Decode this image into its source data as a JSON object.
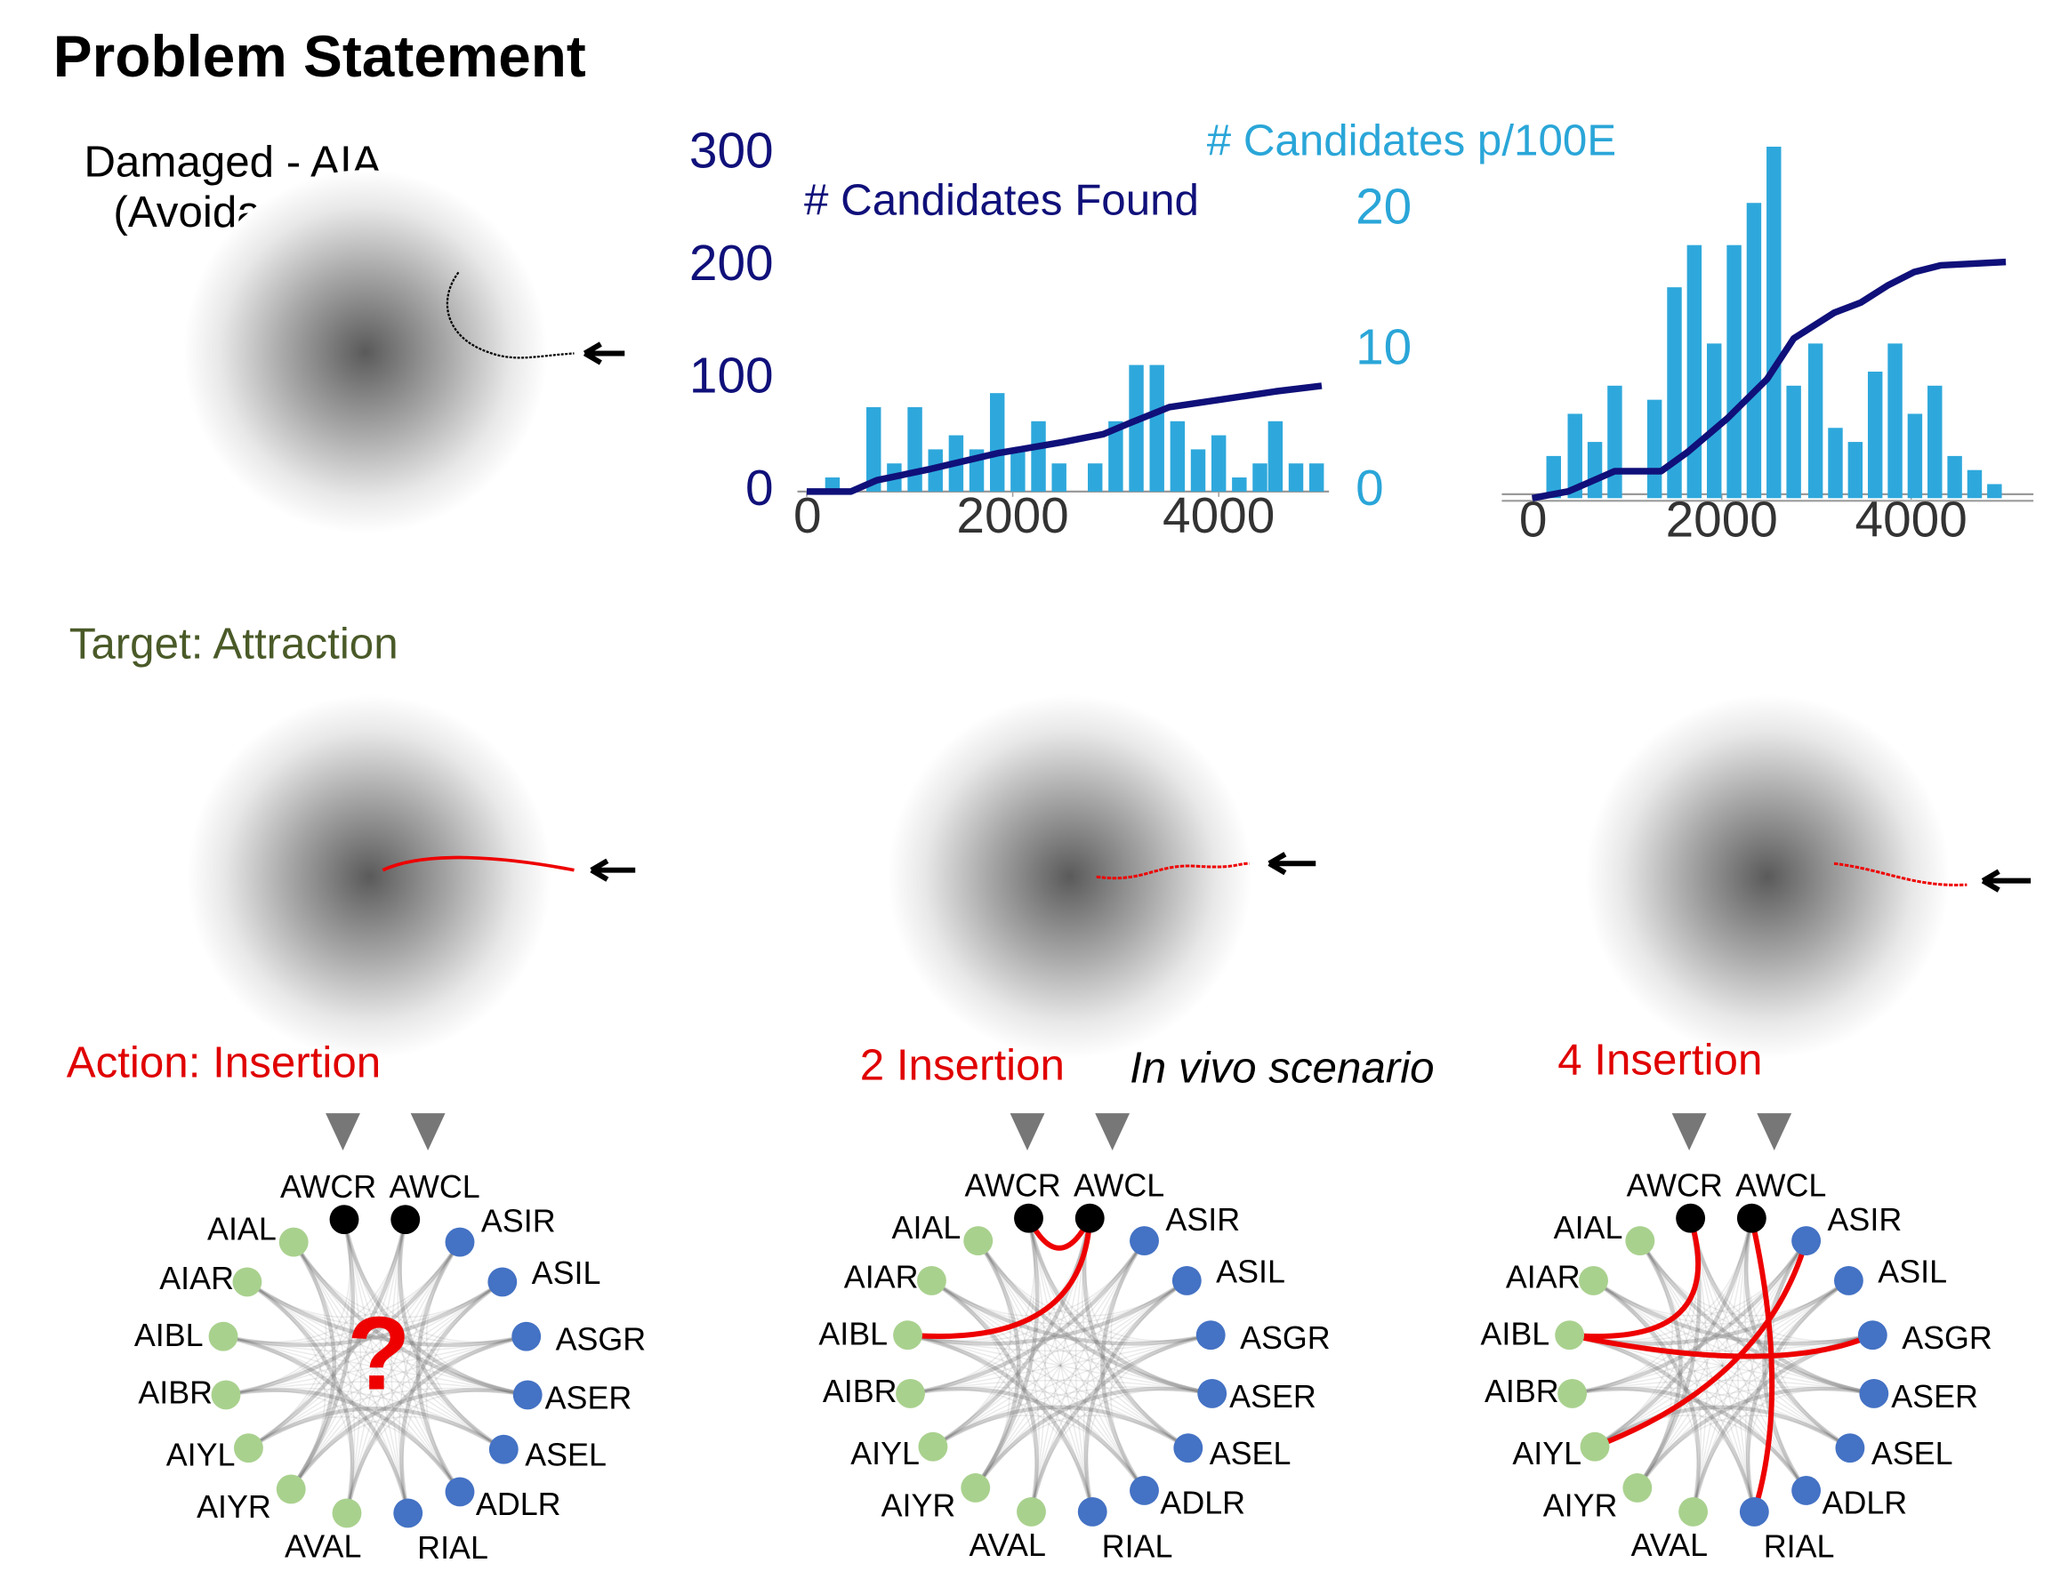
{
  "title": "Problem Statement",
  "damaged": "Damaged - AIA",
  "damaged_note": "(Avoidance)",
  "target": "Target: Attraction",
  "question": "?",
  "diagrams": [
    {
      "title": "Action: Insertion"
    },
    {
      "title": "2 Insertion",
      "note": "In vivo scenario"
    },
    {
      "title": "4 Insertion"
    }
  ],
  "nodes": [
    {
      "label": "AWCR",
      "color": "#000000"
    },
    {
      "label": "AWCL",
      "color": "#000000"
    },
    {
      "label": "ASIR",
      "color": "#4472c4"
    },
    {
      "label": "ASIL",
      "color": "#4472c4"
    },
    {
      "label": "ASGR",
      "color": "#4472c4"
    },
    {
      "label": "ASER",
      "color": "#4472c4"
    },
    {
      "label": "ASEL",
      "color": "#4472c4"
    },
    {
      "label": "ADLR",
      "color": "#4472c4"
    },
    {
      "label": "RIAL",
      "color": "#4472c4"
    },
    {
      "label": "AVAL",
      "color": "#a9d18e"
    },
    {
      "label": "AIYR",
      "color": "#a9d18e"
    },
    {
      "label": "AIYL",
      "color": "#a9d18e"
    },
    {
      "label": "AIBR",
      "color": "#a9d18e"
    },
    {
      "label": "AIBL",
      "color": "#a9d18e"
    },
    {
      "label": "AIAR",
      "color": "#a9d18e"
    },
    {
      "label": "AIAL",
      "color": "#a9d18e"
    }
  ],
  "chart_data": [
    {
      "type": "combo",
      "xlim": [
        0,
        5000
      ],
      "xticks": [
        0,
        2000,
        4000
      ],
      "ylim": [
        0,
        300
      ],
      "yticks": [
        0,
        100,
        200,
        300
      ],
      "ycolor": "#10107a",
      "y2lim": [
        0,
        24
      ],
      "y2ticks": [
        0,
        10,
        20
      ],
      "y2color": "#2aa6d8",
      "series": [
        {
          "name": "# Candidates p/100E",
          "type": "bar",
          "axis": "y2",
          "color": "#2ea8dc",
          "x": [
            250,
            650,
            850,
            1050,
            1250,
            1450,
            1650,
            1850,
            2050,
            2250,
            2450,
            2800,
            3000,
            3200,
            3400,
            3600,
            3800,
            4000,
            4200,
            4400,
            4550,
            4750,
            4950
          ],
          "values": [
            1,
            6,
            2,
            6,
            3,
            4,
            3,
            7,
            3,
            5,
            2,
            2,
            5,
            9,
            9,
            5,
            3,
            4,
            1,
            2,
            5,
            2,
            2
          ]
        },
        {
          "name": "# Candidates Found",
          "type": "line",
          "color": "#10107a",
          "x": [
            0,
            430,
            680,
            1200,
            1850,
            2490,
            2880,
            3140,
            3520,
            4040,
            4550,
            5000
          ],
          "values": [
            0,
            0,
            10,
            20,
            34,
            44,
            51,
            61,
            75,
            82,
            89,
            94
          ]
        }
      ]
    },
    {
      "type": "combo",
      "xlim": [
        0,
        5000
      ],
      "xticks": [
        0,
        2000,
        4000
      ],
      "ylim": [
        0,
        300
      ],
      "y2lim": [
        0,
        24
      ],
      "series": [
        {
          "type": "bar",
          "axis": "y2",
          "color": "#2ea8dc",
          "x": [
            225,
            450,
            660,
            870,
            1290,
            1500,
            1710,
            1920,
            2130,
            2340,
            2550,
            2760,
            2990,
            3200,
            3410,
            3620,
            3830,
            4040,
            4250,
            4460,
            4670,
            4880
          ],
          "values": [
            3,
            6,
            4,
            8,
            7,
            15,
            18,
            11,
            18,
            21,
            25,
            8,
            11,
            5,
            4,
            9,
            11,
            6,
            8,
            3,
            2,
            1
          ]
        },
        {
          "type": "line",
          "color": "#10107a",
          "x": [
            0,
            380,
            870,
            1360,
            1640,
            2060,
            2480,
            2760,
            3190,
            3470,
            3750,
            4030,
            4310,
            5000
          ],
          "values": [
            0,
            6,
            24,
            24,
            41,
            71,
            106,
            142,
            165,
            174,
            189,
            201,
            207,
            210
          ]
        }
      ]
    }
  ]
}
